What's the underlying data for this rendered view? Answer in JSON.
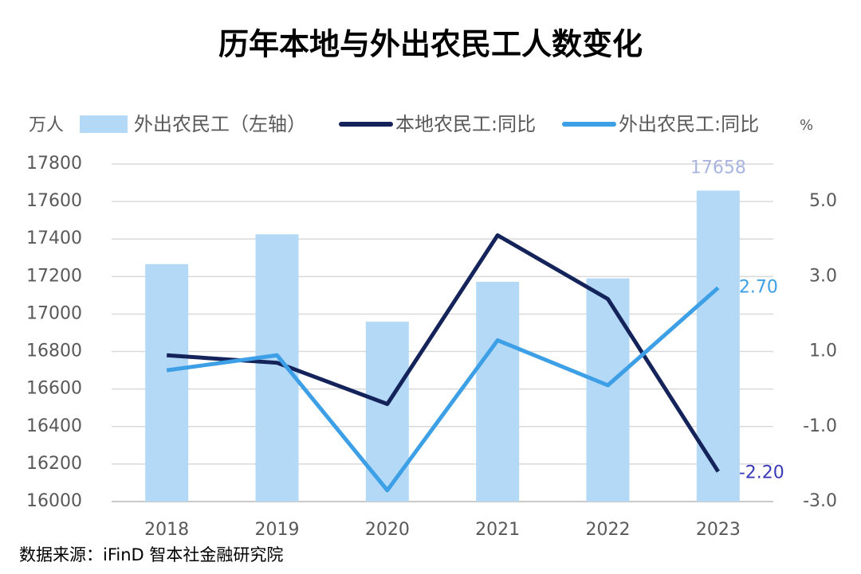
{
  "chart_data": {
    "type": "bar-line",
    "title": "历年本地与外出农民工人数变化",
    "y_unit": "万人",
    "y2_unit": "%",
    "source": "数据来源：iFinD 智本社金融研究院",
    "categories": [
      "2018",
      "2019",
      "2020",
      "2021",
      "2022",
      "2023"
    ],
    "series": [
      {
        "name": "外出农民工（左轴）",
        "type": "bar",
        "color": "#b3d9f7",
        "values": [
          17266,
          17425,
          16959,
          17172,
          17190,
          17658
        ],
        "value_labels": [
          null,
          null,
          null,
          null,
          null,
          "17658"
        ],
        "label_color": "#a9b4e0"
      },
      {
        "name": "本地农民工:同比",
        "type": "line",
        "axis": "y2",
        "color": "#14245a",
        "values": [
          0.9,
          0.7,
          -0.4,
          4.1,
          2.4,
          -2.2
        ],
        "value_labels": [
          null,
          null,
          null,
          null,
          null,
          "-2.20"
        ],
        "label_color": "#3a3ab8"
      },
      {
        "name": "外出农民工:同比",
        "type": "line",
        "axis": "y2",
        "color": "#3d9fe6",
        "values": [
          0.5,
          0.9,
          -2.7,
          1.3,
          0.1,
          2.7
        ],
        "value_labels": [
          null,
          null,
          null,
          null,
          null,
          "2.70"
        ],
        "label_color": "#3d9fe6"
      }
    ],
    "ylim": [
      16000,
      17800
    ],
    "yticks": [
      16000,
      16200,
      16400,
      16600,
      16800,
      17000,
      17200,
      17400,
      17600,
      17800
    ],
    "y2lim": [
      -3,
      6
    ],
    "y2ticks": [
      {
        "value": -3,
        "label": "-3.0"
      },
      {
        "value": -1,
        "label": "-1.0"
      },
      {
        "value": 1,
        "label": "1.0"
      },
      {
        "value": 3,
        "label": "3.0"
      },
      {
        "value": 5,
        "label": "5.0"
      }
    ],
    "grid": true
  }
}
